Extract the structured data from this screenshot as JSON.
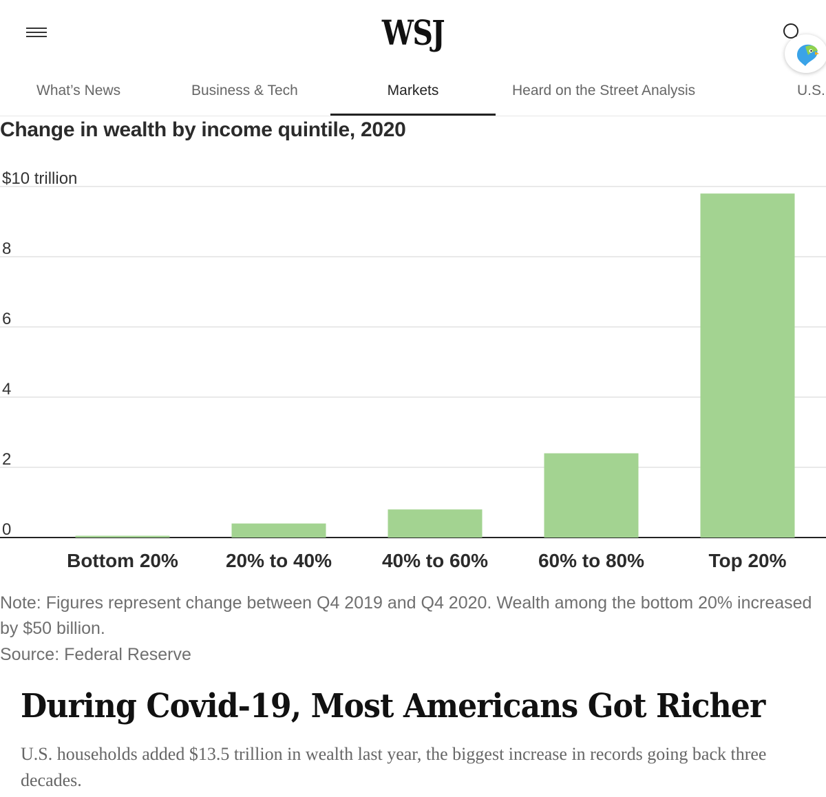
{
  "header": {
    "logo": "WSJ",
    "icons": {
      "menu": "hamburger-menu-icon",
      "search": "search-icon",
      "assistant": "parrot-assistant-icon"
    }
  },
  "nav": {
    "tabs": [
      {
        "label": "What’s News",
        "active": false
      },
      {
        "label": "Business & Tech",
        "active": false
      },
      {
        "label": "Markets",
        "active": true
      },
      {
        "label": "Heard on the Street Analysis",
        "active": false
      },
      {
        "label": "U.S.",
        "active": false
      }
    ]
  },
  "chart_data": {
    "type": "bar",
    "title": "Change in wealth by income quintile, 2020",
    "categories": [
      "Bottom 20%",
      "20% to 40%",
      "40% to 60%",
      "60% to 80%",
      "Top 20%"
    ],
    "values": [
      0.05,
      0.4,
      0.8,
      2.4,
      9.8
    ],
    "ylim": [
      0,
      10
    ],
    "yticks": [
      0,
      2,
      4,
      6,
      8,
      10
    ],
    "ytick_labels": [
      "0",
      "2",
      "4",
      "6",
      "8",
      "$10 trillion"
    ],
    "grid": true,
    "bar_color": "#a3d391"
  },
  "note": "Note: Figures represent change between Q4 2019 and Q4 2020. Wealth among the bottom 20% increased by $50 billion.",
  "source": "Source: Federal Reserve",
  "article": {
    "headline": "During Covid-19, Most Americans Got Richer",
    "summary": "U.S. households added $13.5 trillion in wealth last year, the biggest increase in records going back three decades."
  }
}
